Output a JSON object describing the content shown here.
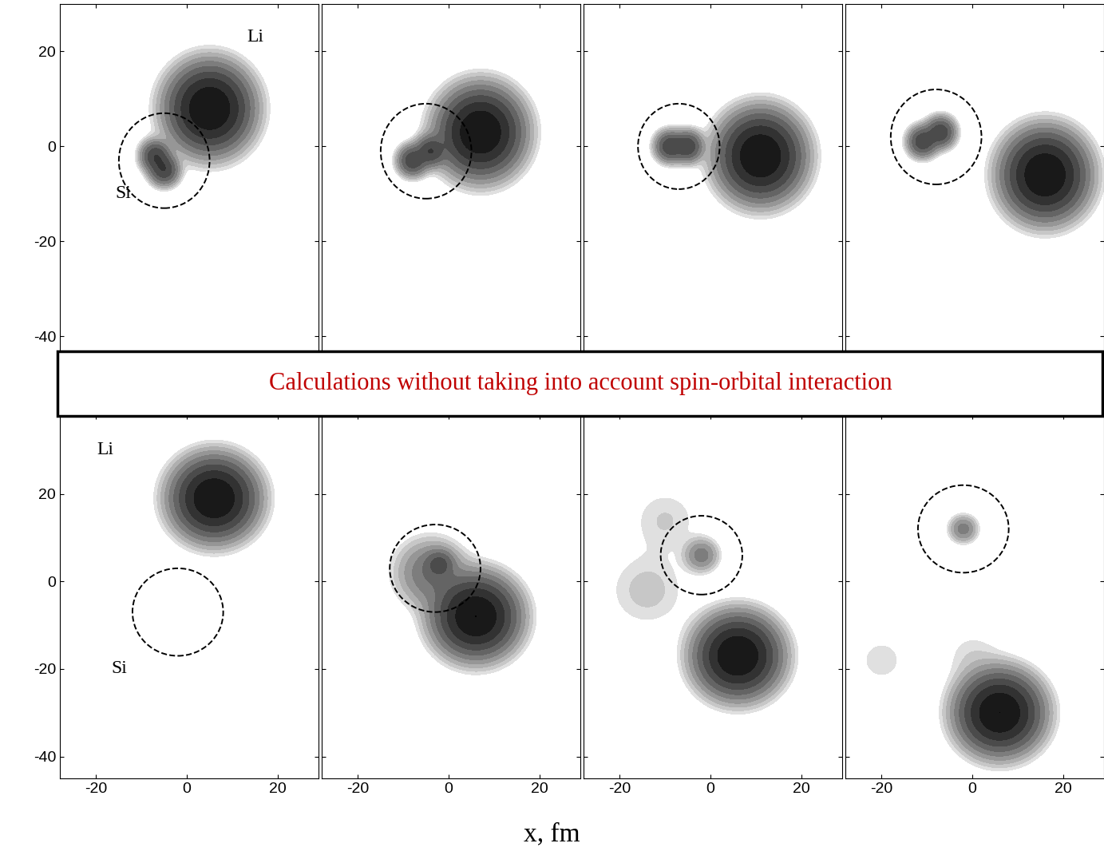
{
  "banner": {
    "text": "Calculations without taking into account spin-orbital interaction",
    "color": "#c00000"
  },
  "xlabel": "x, fm",
  "chart_data": [
    {
      "type": "contour",
      "xlim": [
        -28,
        29
      ],
      "ylim": [
        -45,
        30
      ],
      "xticks": [
        -20,
        0,
        20
      ],
      "yticks": [
        -40,
        -20,
        0,
        20
      ],
      "tick_labels": "y",
      "blobs": [
        {
          "x": 5,
          "y": 8,
          "radius": 6.5,
          "density": 1.0
        },
        {
          "x": -7,
          "y": -2,
          "radius": 2.5,
          "density": 0.35
        },
        {
          "x": -5,
          "y": -5,
          "radius": 2.5,
          "density": 0.35
        }
      ],
      "circle": {
        "x": -5,
        "y": -3,
        "r": 10
      },
      "annotations": [
        {
          "text": "Li",
          "x": 15,
          "y": 23
        },
        {
          "text": "Si",
          "x": -14,
          "y": -10
        }
      ]
    },
    {
      "type": "contour",
      "xlim": [
        -28,
        29
      ],
      "ylim": [
        -45,
        30
      ],
      "xticks": [
        -20,
        0,
        20
      ],
      "yticks": [
        -40,
        -20,
        0,
        20
      ],
      "tick_labels": false,
      "blobs": [
        {
          "x": 7,
          "y": 3,
          "radius": 6.5,
          "density": 1.0
        },
        {
          "x": -8,
          "y": -3,
          "radius": 2.5,
          "density": 0.35
        },
        {
          "x": -4,
          "y": -1,
          "radius": 2.5,
          "density": 0.35
        }
      ],
      "circle": {
        "x": -5,
        "y": -1,
        "r": 10
      },
      "annotations": []
    },
    {
      "type": "contour",
      "xlim": [
        -28,
        29
      ],
      "ylim": [
        -45,
        30
      ],
      "xticks": [
        -20,
        0,
        20
      ],
      "yticks": [
        -40,
        -20,
        0,
        20
      ],
      "tick_labels": false,
      "blobs": [
        {
          "x": 11,
          "y": -2,
          "radius": 6.5,
          "density": 1.0
        },
        {
          "x": -9,
          "y": 0,
          "radius": 2.5,
          "density": 0.35
        },
        {
          "x": -5,
          "y": 0,
          "radius": 2.5,
          "density": 0.35
        }
      ],
      "circle": {
        "x": -7,
        "y": 0,
        "r": 9
      },
      "annotations": []
    },
    {
      "type": "contour",
      "xlim": [
        -28,
        29
      ],
      "ylim": [
        -45,
        30
      ],
      "xticks": [
        -20,
        0,
        20
      ],
      "yticks": [
        -40,
        -20,
        0,
        20
      ],
      "tick_labels": false,
      "blobs": [
        {
          "x": 16,
          "y": -6,
          "radius": 6.5,
          "density": 1.0
        },
        {
          "x": -11,
          "y": 1,
          "radius": 2.5,
          "density": 0.35
        },
        {
          "x": -7,
          "y": 3,
          "radius": 2.5,
          "density": 0.35
        }
      ],
      "circle": {
        "x": -8,
        "y": 2,
        "r": 10
      },
      "annotations": []
    },
    {
      "type": "contour",
      "xlim": [
        -28,
        29
      ],
      "ylim": [
        -45,
        38
      ],
      "xticks": [
        -20,
        0,
        20
      ],
      "yticks": [
        -40,
        -20,
        0,
        20
      ],
      "blobs": [
        {
          "x": 6,
          "y": 19,
          "radius": 6.5,
          "density": 1.0
        }
      ],
      "circle": {
        "x": -2,
        "y": -7,
        "r": 10
      },
      "annotations": [
        {
          "text": "Li",
          "x": -18,
          "y": 30
        },
        {
          "text": "Si",
          "x": -15,
          "y": -20
        }
      ]
    },
    {
      "type": "contour",
      "xlim": [
        -28,
        29
      ],
      "ylim": [
        -45,
        38
      ],
      "xticks": [
        -20,
        0,
        20
      ],
      "yticks": [
        -40,
        -20,
        0,
        20
      ],
      "tick_labels": "x",
      "blobs": [
        {
          "x": 6,
          "y": -8,
          "radius": 6.5,
          "density": 1.0
        },
        {
          "x": -4,
          "y": 2,
          "radius": 6,
          "density": 0.15
        },
        {
          "x": -2,
          "y": 4,
          "radius": 2.5,
          "density": 0.2
        }
      ],
      "circle": {
        "x": -3,
        "y": 3,
        "r": 10
      },
      "annotations": []
    },
    {
      "type": "contour",
      "xlim": [
        -28,
        29
      ],
      "ylim": [
        -45,
        38
      ],
      "xticks": [
        -20,
        0,
        20
      ],
      "yticks": [
        -40,
        -20,
        0,
        20
      ],
      "tick_labels": "x",
      "blobs": [
        {
          "x": 6,
          "y": -17,
          "radius": 6.5,
          "density": 1.0
        },
        {
          "x": -2,
          "y": 6,
          "radius": 3,
          "density": 0.12
        },
        {
          "x": -14,
          "y": -2,
          "radius": 8,
          "density": 0.03
        },
        {
          "x": -10,
          "y": 14,
          "radius": 7,
          "density": 0.025
        }
      ],
      "circle": {
        "x": -2,
        "y": 6,
        "r": 9
      },
      "annotations": []
    },
    {
      "type": "contour",
      "xlim": [
        -28,
        29
      ],
      "ylim": [
        -45,
        38
      ],
      "xticks": [
        -20,
        0,
        20
      ],
      "yticks": [
        -40,
        -20,
        0,
        20
      ],
      "tick_labels": "x",
      "blobs": [
        {
          "x": 6,
          "y": -30,
          "radius": 6.5,
          "density": 1.0
        },
        {
          "x": -2,
          "y": 12,
          "radius": 2.5,
          "density": 0.12
        },
        {
          "x": -20,
          "y": -18,
          "radius": 6,
          "density": 0.02
        },
        {
          "x": 0,
          "y": -17,
          "radius": 6,
          "density": 0.02
        }
      ],
      "circle": {
        "x": -2,
        "y": 12,
        "r": 10
      },
      "annotations": []
    }
  ]
}
